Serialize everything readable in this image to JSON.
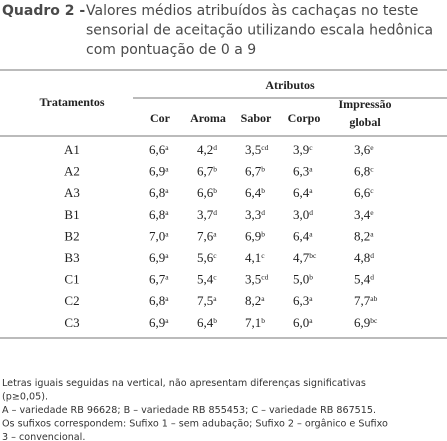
{
  "title": {
    "label": "Quadro 2 -",
    "lines": [
      "Valores médios atribuídos às cachaças no teste",
      "sensorial de aceitação utilizando escala hedônica",
      "com pontuação de 0 a 9"
    ]
  },
  "table": {
    "row_header": "Tratamentos",
    "group_header": "Atributos",
    "columns": [
      "Cor",
      "Aroma",
      "Sabor",
      "Corpo",
      [
        "Impressão",
        "global"
      ]
    ],
    "rows": [
      {
        "name": "A1",
        "cells": [
          {
            "value": "6,6",
            "sup": "a"
          },
          {
            "value": "4,2",
            "sup": "d"
          },
          {
            "value": "3,5",
            "sup": "cd"
          },
          {
            "value": "3,9",
            "sup": "c"
          },
          {
            "value": "3,6",
            "sup": "e"
          }
        ]
      },
      {
        "name": "A2",
        "cells": [
          {
            "value": "6,9",
            "sup": "a"
          },
          {
            "value": "6,7",
            "sup": "b"
          },
          {
            "value": "6,7",
            "sup": "b"
          },
          {
            "value": "6,3",
            "sup": "a"
          },
          {
            "value": "6,8",
            "sup": "c"
          }
        ]
      },
      {
        "name": "A3",
        "cells": [
          {
            "value": "6,8",
            "sup": "a"
          },
          {
            "value": "6,6",
            "sup": "b"
          },
          {
            "value": "6,4",
            "sup": "b"
          },
          {
            "value": "6,4",
            "sup": "a"
          },
          {
            "value": "6,6",
            "sup": "c"
          }
        ]
      },
      {
        "name": "B1",
        "cells": [
          {
            "value": "6,8",
            "sup": "a"
          },
          {
            "value": "3,7",
            "sup": "d"
          },
          {
            "value": "3,3",
            "sup": "d"
          },
          {
            "value": "3,0",
            "sup": "d"
          },
          {
            "value": "3,4",
            "sup": "e"
          }
        ]
      },
      {
        "name": "B2",
        "cells": [
          {
            "value": "7,0",
            "sup": "a"
          },
          {
            "value": "7,6",
            "sup": "a"
          },
          {
            "value": "6,9",
            "sup": "b"
          },
          {
            "value": "6,4",
            "sup": "a"
          },
          {
            "value": "8,2",
            "sup": "a"
          }
        ]
      },
      {
        "name": "B3",
        "cells": [
          {
            "value": "6,9",
            "sup": "a"
          },
          {
            "value": "5,6",
            "sup": "c"
          },
          {
            "value": "4,1",
            "sup": "c"
          },
          {
            "value": "4,7",
            "sup": "bc"
          },
          {
            "value": "4,8",
            "sup": "d"
          }
        ]
      },
      {
        "name": "C1",
        "cells": [
          {
            "value": "6,7",
            "sup": "a"
          },
          {
            "value": "5,4",
            "sup": "c"
          },
          {
            "value": "3,5",
            "sup": "cd"
          },
          {
            "value": "5,0",
            "sup": "b"
          },
          {
            "value": "5,4",
            "sup": "d"
          }
        ]
      },
      {
        "name": "C2",
        "cells": [
          {
            "value": "6,8",
            "sup": "a"
          },
          {
            "value": "7,5",
            "sup": "a"
          },
          {
            "value": "8,2",
            "sup": "a"
          },
          {
            "value": "6,3",
            "sup": "a"
          },
          {
            "value": "7,7",
            "sup": "ab"
          }
        ]
      },
      {
        "name": "C3",
        "cells": [
          {
            "value": "6,9",
            "sup": "a"
          },
          {
            "value": "6,4",
            "sup": "b"
          },
          {
            "value": "7,1",
            "sup": "b"
          },
          {
            "value": "6,0",
            "sup": "a"
          },
          {
            "value": "6,9",
            "sup": "bc"
          }
        ]
      }
    ]
  },
  "notes": [
    "Letras iguais seguidas na vertical, não apresentam diferenças significativas",
    "(p≥0,05).",
    "A – variedade RB 96628; B – variedade RB 855453; C – variedade RB 867515.",
    "Os sufixos correspondem: Sufixo 1 – sem adubação; Sufixo 2 – orgânico e Sufixo",
    "3 – convencional."
  ]
}
